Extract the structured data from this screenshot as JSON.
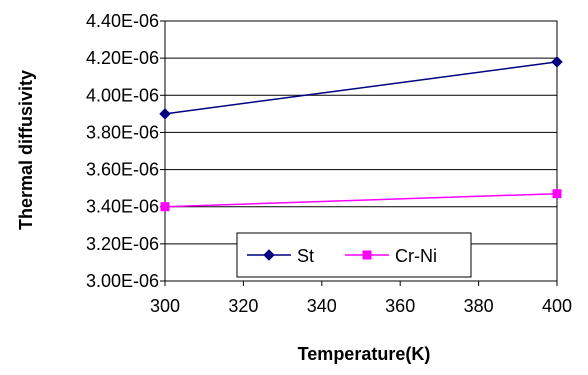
{
  "chart_data": {
    "type": "line",
    "title": "",
    "xlabel": "Temperature(K)",
    "ylabel": "Thermal diffusivity",
    "xlim": [
      300,
      400
    ],
    "ylim": [
      3e-06,
      4.4e-06
    ],
    "x_ticks": [
      "300",
      "320",
      "340",
      "360",
      "380",
      "400"
    ],
    "y_ticks": [
      "3.00E-06",
      "3.20E-06",
      "3.40E-06",
      "3.60E-06",
      "3.80E-06",
      "4.00E-06",
      "4.20E-06",
      "4.40E-06"
    ],
    "grid": "horizontal",
    "legend_position": "bottom-center, inside plot",
    "series": [
      {
        "name": "St",
        "color": "#000080",
        "marker": "diamond",
        "x": [
          300,
          400
        ],
        "y": [
          3.9e-06,
          4.18e-06
        ]
      },
      {
        "name": "Cr-Ni",
        "color": "#FF00FF",
        "marker": "square",
        "x": [
          300,
          400
        ],
        "y": [
          3.4e-06,
          3.47e-06
        ]
      }
    ]
  }
}
